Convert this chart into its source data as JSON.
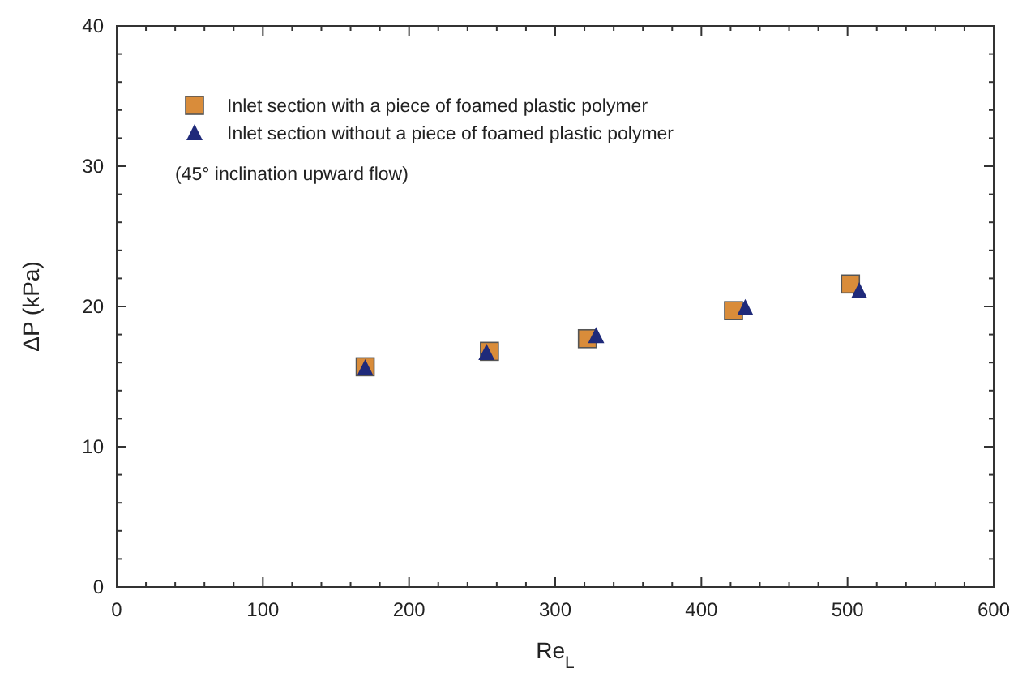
{
  "chart_data": {
    "type": "scatter",
    "xlabel": "Re$_{L}$",
    "ylabel": "ΔP (kPa)",
    "xlim": [
      0,
      600
    ],
    "ylim": [
      0,
      40
    ],
    "xticks": [
      0,
      {
        "value": 20,
        "label": null
      },
      {
        "value": 40,
        "label": null
      },
      {
        "value": 60,
        "label": null
      },
      {
        "value": 80,
        "label": null
      },
      100,
      {
        "value": 120,
        "label": null
      },
      {
        "value": 140,
        "label": null
      },
      {
        "value": 160,
        "label": null
      },
      {
        "value": 180,
        "label": null
      },
      200,
      {
        "value": 220,
        "label": null
      },
      {
        "value": 240,
        "label": null
      },
      {
        "value": 260,
        "label": null
      },
      {
        "value": 280,
        "label": null
      },
      300,
      {
        "value": 320,
        "label": null
      },
      {
        "value": 340,
        "label": null
      },
      {
        "value": 360,
        "label": null
      },
      {
        "value": 380,
        "label": null
      },
      400,
      {
        "value": 420,
        "label": null
      },
      {
        "value": 440,
        "label": null
      },
      {
        "value": 460,
        "label": null
      },
      {
        "value": 480,
        "label": null
      },
      500,
      {
        "value": 520,
        "label": null
      },
      {
        "value": 540,
        "label": null
      },
      {
        "value": 560,
        "label": null
      },
      {
        "value": 580,
        "label": null
      },
      600
    ],
    "yticks": [
      0,
      {
        "value": 2,
        "label": null
      },
      {
        "value": 4,
        "label": null
      },
      {
        "value": 6,
        "label": null
      },
      {
        "value": 8,
        "label": null
      },
      10,
      {
        "value": 12,
        "label": null
      },
      {
        "value": 14,
        "label": null
      },
      {
        "value": 16,
        "label": null
      },
      {
        "value": 18,
        "label": null
      },
      20,
      {
        "value": 22,
        "label": null
      },
      {
        "value": 24,
        "label": null
      },
      {
        "value": 26,
        "label": null
      },
      {
        "value": 28,
        "label": null
      },
      30,
      {
        "value": 32,
        "label": null
      },
      {
        "value": 34,
        "label": null
      },
      {
        "value": 36,
        "label": null
      },
      {
        "value": 38,
        "label": null
      },
      40
    ],
    "grid": false,
    "legend": "top left",
    "annotations": [
      "(45° inclination upward flow)"
    ],
    "series": [
      {
        "name": "Inlet section with a piece of foamed plastic polymer",
        "color": "#d98c3a",
        "marker": "square",
        "x": [
          170,
          255,
          322,
          422,
          502
        ],
        "values": [
          15.7,
          16.8,
          17.7,
          19.7,
          21.6
        ]
      },
      {
        "name": "Inlet section without a piece of foamed plastic polymer",
        "color": "#1f2a7a",
        "marker": "triangle",
        "x": [
          170,
          253,
          328,
          430,
          508
        ],
        "values": [
          15.6,
          16.7,
          17.9,
          19.9,
          21.1
        ]
      }
    ]
  }
}
